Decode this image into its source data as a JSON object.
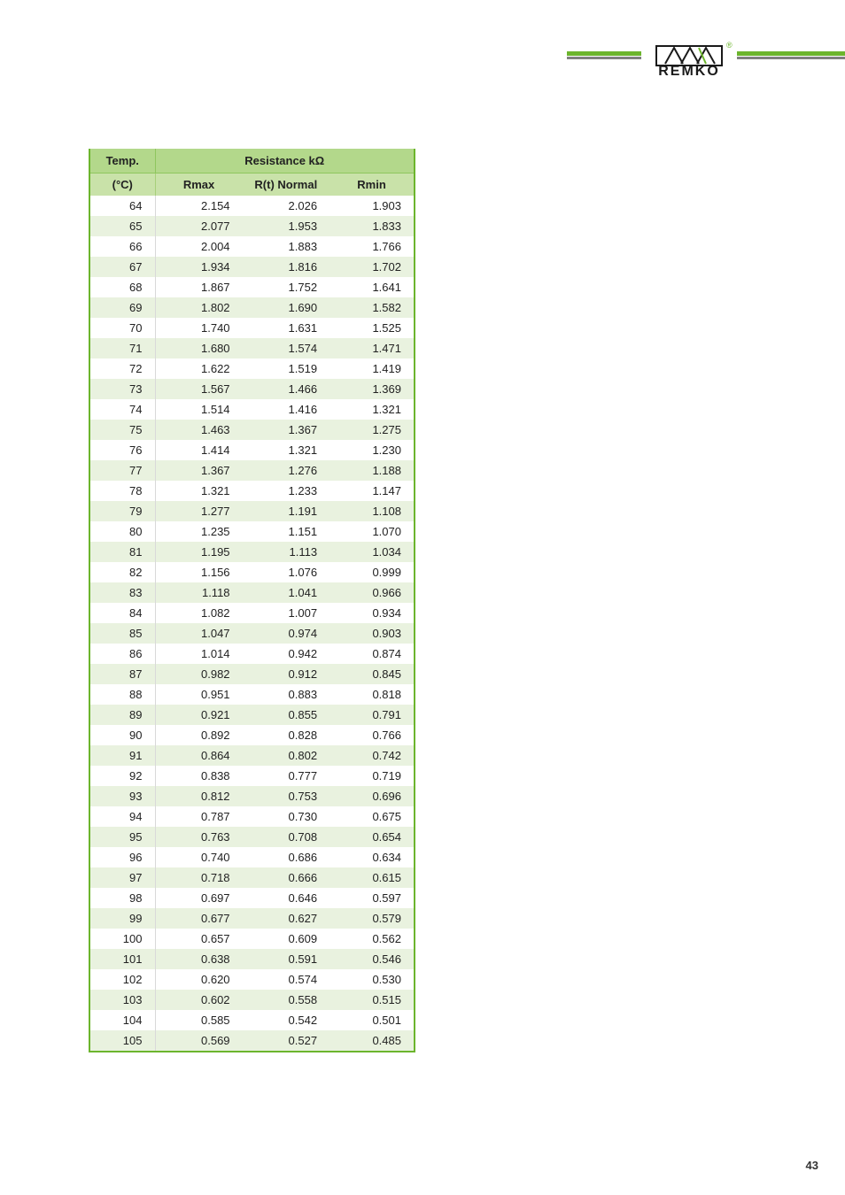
{
  "brand": {
    "name": "REMKO",
    "accent_color": "#6cb52d",
    "grey_color": "#808080"
  },
  "page_number": "43",
  "table": {
    "header_row1": {
      "temp": "Temp.",
      "resistance": "Resistance kΩ"
    },
    "header_row2": {
      "temp_unit": "(°C)",
      "rmax": "Rmax",
      "rnormal": "R(t) Normal",
      "rmin": "Rmin"
    },
    "colors": {
      "border": "#6cb52d",
      "header1_bg": "#b3d88b",
      "header2_bg": "#c9e2a9",
      "row_odd_bg": "#ffffff",
      "row_even_bg": "#e9f2df",
      "col_sep": "#d9d9d9"
    },
    "rows": [
      {
        "t": "64",
        "rmax": "2.154",
        "rn": "2.026",
        "rmin": "1.903"
      },
      {
        "t": "65",
        "rmax": "2.077",
        "rn": "1.953",
        "rmin": "1.833"
      },
      {
        "t": "66",
        "rmax": "2.004",
        "rn": "1.883",
        "rmin": "1.766"
      },
      {
        "t": "67",
        "rmax": "1.934",
        "rn": "1.816",
        "rmin": "1.702"
      },
      {
        "t": "68",
        "rmax": "1.867",
        "rn": "1.752",
        "rmin": "1.641"
      },
      {
        "t": "69",
        "rmax": "1.802",
        "rn": "1.690",
        "rmin": "1.582"
      },
      {
        "t": "70",
        "rmax": "1.740",
        "rn": "1.631",
        "rmin": "1.525"
      },
      {
        "t": "71",
        "rmax": "1.680",
        "rn": "1.574",
        "rmin": "1.471"
      },
      {
        "t": "72",
        "rmax": "1.622",
        "rn": "1.519",
        "rmin": "1.419"
      },
      {
        "t": "73",
        "rmax": "1.567",
        "rn": "1.466",
        "rmin": "1.369"
      },
      {
        "t": "74",
        "rmax": "1.514",
        "rn": "1.416",
        "rmin": "1.321"
      },
      {
        "t": "75",
        "rmax": "1.463",
        "rn": "1.367",
        "rmin": "1.275"
      },
      {
        "t": "76",
        "rmax": "1.414",
        "rn": "1.321",
        "rmin": "1.230"
      },
      {
        "t": "77",
        "rmax": "1.367",
        "rn": "1.276",
        "rmin": "1.188"
      },
      {
        "t": "78",
        "rmax": "1.321",
        "rn": "1.233",
        "rmin": "1.147"
      },
      {
        "t": "79",
        "rmax": "1.277",
        "rn": "1.191",
        "rmin": "1.108"
      },
      {
        "t": "80",
        "rmax": "1.235",
        "rn": "1.151",
        "rmin": "1.070"
      },
      {
        "t": "81",
        "rmax": "1.195",
        "rn": "1.113",
        "rmin": "1.034"
      },
      {
        "t": "82",
        "rmax": "1.156",
        "rn": "1.076",
        "rmin": "0.999"
      },
      {
        "t": "83",
        "rmax": "1.118",
        "rn": "1.041",
        "rmin": "0.966"
      },
      {
        "t": "84",
        "rmax": "1.082",
        "rn": "1.007",
        "rmin": "0.934"
      },
      {
        "t": "85",
        "rmax": "1.047",
        "rn": "0.974",
        "rmin": "0.903"
      },
      {
        "t": "86",
        "rmax": "1.014",
        "rn": "0.942",
        "rmin": "0.874"
      },
      {
        "t": "87",
        "rmax": "0.982",
        "rn": "0.912",
        "rmin": "0.845"
      },
      {
        "t": "88",
        "rmax": "0.951",
        "rn": "0.883",
        "rmin": "0.818"
      },
      {
        "t": "89",
        "rmax": "0.921",
        "rn": "0.855",
        "rmin": "0.791"
      },
      {
        "t": "90",
        "rmax": "0.892",
        "rn": "0.828",
        "rmin": "0.766"
      },
      {
        "t": "91",
        "rmax": "0.864",
        "rn": "0.802",
        "rmin": "0.742"
      },
      {
        "t": "92",
        "rmax": "0.838",
        "rn": "0.777",
        "rmin": "0.719"
      },
      {
        "t": "93",
        "rmax": "0.812",
        "rn": "0.753",
        "rmin": "0.696"
      },
      {
        "t": "94",
        "rmax": "0.787",
        "rn": "0.730",
        "rmin": "0.675"
      },
      {
        "t": "95",
        "rmax": "0.763",
        "rn": "0.708",
        "rmin": "0.654"
      },
      {
        "t": "96",
        "rmax": "0.740",
        "rn": "0.686",
        "rmin": "0.634"
      },
      {
        "t": "97",
        "rmax": "0.718",
        "rn": "0.666",
        "rmin": "0.615"
      },
      {
        "t": "98",
        "rmax": "0.697",
        "rn": "0.646",
        "rmin": "0.597"
      },
      {
        "t": "99",
        "rmax": "0.677",
        "rn": "0.627",
        "rmin": "0.579"
      },
      {
        "t": "100",
        "rmax": "0.657",
        "rn": "0.609",
        "rmin": "0.562"
      },
      {
        "t": "101",
        "rmax": "0.638",
        "rn": "0.591",
        "rmin": "0.546"
      },
      {
        "t": "102",
        "rmax": "0.620",
        "rn": "0.574",
        "rmin": "0.530"
      },
      {
        "t": "103",
        "rmax": "0.602",
        "rn": "0.558",
        "rmin": "0.515"
      },
      {
        "t": "104",
        "rmax": "0.585",
        "rn": "0.542",
        "rmin": "0.501"
      },
      {
        "t": "105",
        "rmax": "0.569",
        "rn": "0.527",
        "rmin": "0.485"
      }
    ]
  }
}
